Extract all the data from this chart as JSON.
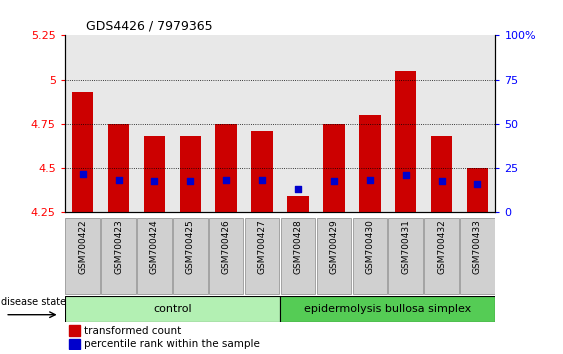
{
  "title": "GDS4426 / 7979365",
  "samples": [
    "GSM700422",
    "GSM700423",
    "GSM700424",
    "GSM700425",
    "GSM700426",
    "GSM700427",
    "GSM700428",
    "GSM700429",
    "GSM700430",
    "GSM700431",
    "GSM700432",
    "GSM700433"
  ],
  "red_values": [
    4.93,
    4.75,
    4.68,
    4.68,
    4.75,
    4.71,
    4.34,
    4.75,
    4.8,
    5.05,
    4.68,
    4.5
  ],
  "blue_values": [
    4.465,
    4.435,
    4.425,
    4.425,
    4.435,
    4.435,
    4.385,
    4.43,
    4.435,
    4.46,
    4.43,
    4.41
  ],
  "ymin": 4.25,
  "ymax": 5.25,
  "yticks_left": [
    4.25,
    4.5,
    4.75,
    5.0,
    5.25
  ],
  "yticks_right": [
    0,
    25,
    50,
    75,
    100
  ],
  "ytick_labels_left": [
    "4.25",
    "4.5",
    "4.75",
    "5",
    "5.25"
  ],
  "ytick_labels_right": [
    "0",
    "25",
    "50",
    "75",
    "100%"
  ],
  "grid_lines": [
    5.0,
    4.75,
    4.5
  ],
  "control_label": "control",
  "ebs_label": "epidermolysis bullosa simplex",
  "disease_state_label": "disease state",
  "legend_red": "transformed count",
  "legend_blue": "percentile rank within the sample",
  "bar_color": "#cc0000",
  "blue_color": "#0000cc",
  "bar_width": 0.6,
  "blue_square_size": 18,
  "control_bg": "#b3f0b3",
  "ebs_bg": "#55cc55",
  "tick_bg": "#d0d0d0"
}
